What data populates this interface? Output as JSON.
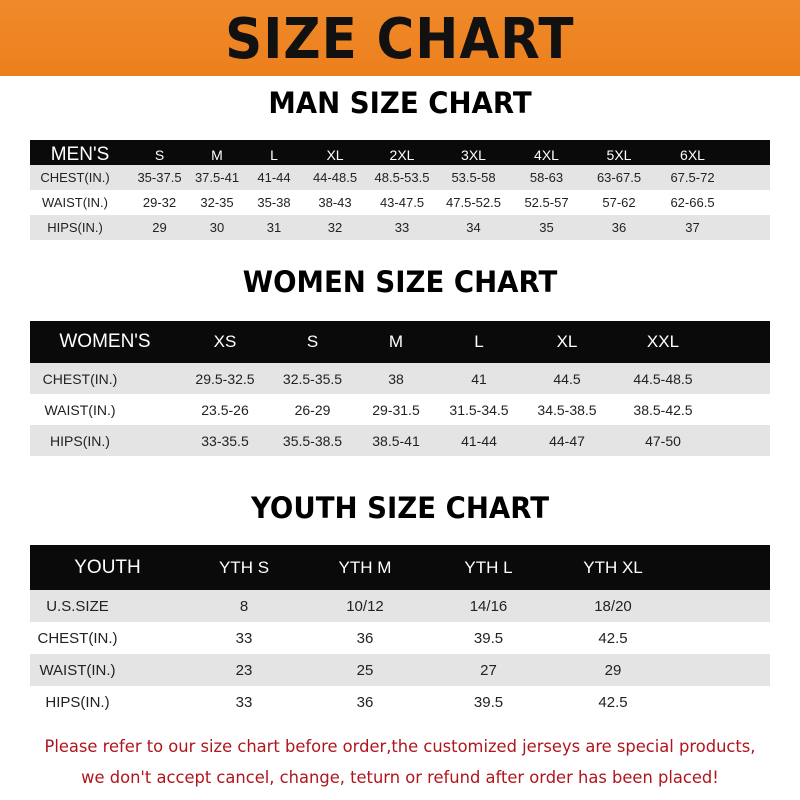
{
  "banner": {
    "title": "SIZE CHART",
    "color": "#ef8424"
  },
  "men": {
    "title": "MAN SIZE CHART",
    "header": [
      "MEN'S",
      "S",
      "M",
      "L",
      "XL",
      "2XL",
      "3XL",
      "4XL",
      "5XL",
      "6XL"
    ],
    "rows": [
      [
        "CHEST(IN.)",
        "35-37.5",
        "37.5-41",
        "41-44",
        "44-48.5",
        "48.5-53.5",
        "53.5-58",
        "58-63",
        "63-67.5",
        "67.5-72"
      ],
      [
        "WAIST(IN.)",
        "29-32",
        "32-35",
        "35-38",
        "38-43",
        "43-47.5",
        "47.5-52.5",
        "52.5-57",
        "57-62",
        "62-66.5"
      ],
      [
        "HIPS(IN.)",
        "29",
        "30",
        "31",
        "32",
        "33",
        "34",
        "35",
        "36",
        "37"
      ]
    ]
  },
  "women": {
    "title": "WOMEN SIZE CHART",
    "header": [
      "WOMEN'S",
      "XS",
      "S",
      "M",
      "L",
      "XL",
      "XXL"
    ],
    "rows": [
      [
        "CHEST(IN.)",
        "29.5-32.5",
        "32.5-35.5",
        "38",
        "41",
        "44.5",
        "44.5-48.5"
      ],
      [
        "WAIST(IN.)",
        "23.5-26",
        "26-29",
        "29-31.5",
        "31.5-34.5",
        "34.5-38.5",
        "38.5-42.5"
      ],
      [
        "HIPS(IN.)",
        "33-35.5",
        "35.5-38.5",
        "38.5-41",
        "41-44",
        "44-47",
        "47-50"
      ]
    ]
  },
  "youth": {
    "title": "YOUTH SIZE CHART",
    "header": [
      "YOUTH",
      "YTH S",
      "YTH M",
      "YTH L",
      "YTH XL"
    ],
    "rows": [
      [
        "U.S.SIZE",
        "8",
        "10/12",
        "14/16",
        "18/20"
      ],
      [
        "CHEST(IN.)",
        "33",
        "36",
        "39.5",
        "42.5"
      ],
      [
        "WAIST(IN.)",
        "23",
        "25",
        "27",
        "29"
      ],
      [
        "HIPS(IN.)",
        "33",
        "36",
        "39.5",
        "42.5"
      ]
    ]
  },
  "footer": {
    "line1": "Please refer to our size chart before order,the customized jerseys are special products,",
    "line2": "we don't accept cancel, change, teturn or refund after order has been placed!",
    "color": "#b0151d"
  }
}
